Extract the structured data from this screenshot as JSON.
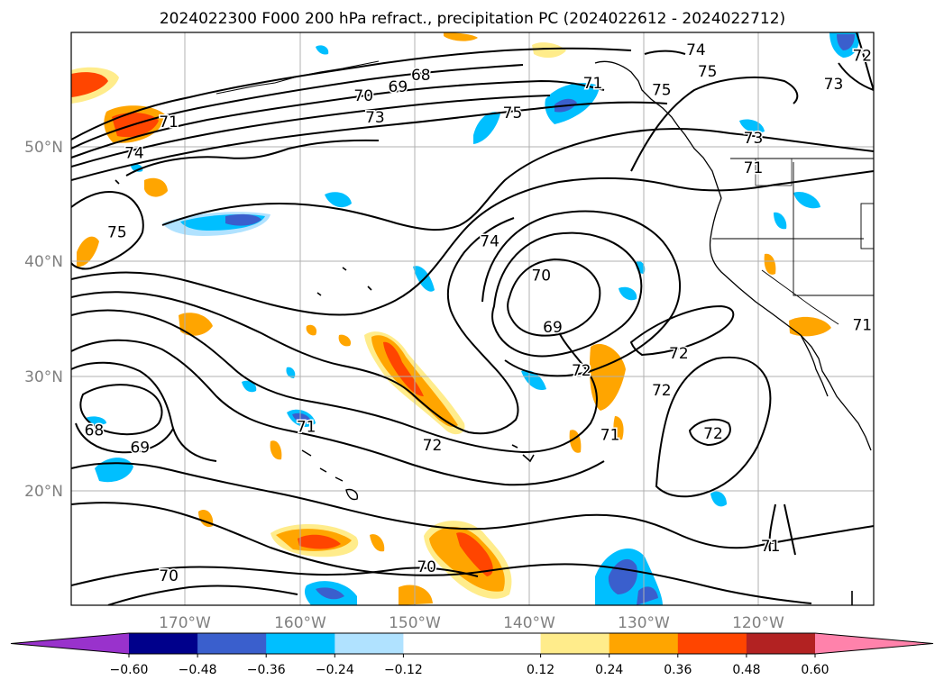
{
  "title": "2024022300 F000 200 hPa refract., precipitation PC (2024022612 - 2024022712)",
  "chart_data": {
    "type": "heatmap",
    "title": "2024022300 F000 200 hPa refract., precipitation PC (2024022612 - 2024022712)",
    "lon_range": [
      -180,
      -110
    ],
    "lat_range": [
      10,
      60
    ],
    "lon_ticks": [
      {
        "value": -170,
        "label": "170°W"
      },
      {
        "value": -160,
        "label": "160°W"
      },
      {
        "value": -150,
        "label": "150°W"
      },
      {
        "value": -140,
        "label": "140°W"
      },
      {
        "value": -130,
        "label": "130°W"
      },
      {
        "value": -120,
        "label": "120°W"
      }
    ],
    "lat_ticks": [
      {
        "value": 20,
        "label": "20°N"
      },
      {
        "value": 30,
        "label": "30°N"
      },
      {
        "value": 40,
        "label": "40°N"
      },
      {
        "value": 50,
        "label": "50°N"
      }
    ],
    "grid": true,
    "colorbar": {
      "orientation": "horizontal",
      "placement": "bottom",
      "extend": "both",
      "bounds": [
        -0.6,
        -0.48,
        -0.36,
        -0.24,
        -0.12,
        0.12,
        0.24,
        0.36,
        0.48,
        0.6
      ],
      "tick_labels": [
        "−0.60",
        "−0.48",
        "−0.36",
        "−0.24",
        "−0.12",
        "0.12",
        "0.24",
        "0.36",
        "0.48",
        "0.60"
      ],
      "colors": [
        "#9932cc",
        "#00008b",
        "#3a5fcd",
        "#00bfff",
        "#b0e2ff",
        "#ffffff",
        "#ffec8b",
        "#ffa500",
        "#ff4500",
        "#b22222",
        "#ff82ab"
      ]
    },
    "contour_labels": [
      {
        "lon": -149.5,
        "lat": 56.3,
        "text": "68"
      },
      {
        "lon": -151.5,
        "lat": 55.3,
        "text": "69"
      },
      {
        "lon": -154.5,
        "lat": 54.5,
        "text": "70"
      },
      {
        "lon": -153.5,
        "lat": 52.6,
        "text": "73"
      },
      {
        "lon": -171.5,
        "lat": 52.2,
        "text": "71"
      },
      {
        "lon": -141.5,
        "lat": 53.0,
        "text": "75"
      },
      {
        "lon": -134.5,
        "lat": 55.6,
        "text": "71"
      },
      {
        "lon": -128.5,
        "lat": 55.0,
        "text": "75"
      },
      {
        "lon": -125.5,
        "lat": 58.5,
        "text": "74"
      },
      {
        "lon": -124.5,
        "lat": 56.6,
        "text": "75"
      },
      {
        "lon": -120.5,
        "lat": 50.8,
        "text": "73"
      },
      {
        "lon": -120.5,
        "lat": 48.2,
        "text": "71"
      },
      {
        "lon": -113.5,
        "lat": 55.5,
        "text": "73"
      },
      {
        "lon": -111.0,
        "lat": 58.0,
        "text": "72"
      },
      {
        "lon": -174.5,
        "lat": 49.5,
        "text": "74"
      },
      {
        "lon": -176.0,
        "lat": 42.6,
        "text": "75"
      },
      {
        "lon": -143.5,
        "lat": 41.8,
        "text": "74"
      },
      {
        "lon": -139.0,
        "lat": 38.8,
        "text": "70"
      },
      {
        "lon": -138.0,
        "lat": 34.3,
        "text": "69"
      },
      {
        "lon": -135.5,
        "lat": 30.5,
        "text": "72"
      },
      {
        "lon": -133.0,
        "lat": 24.9,
        "text": "71"
      },
      {
        "lon": -127.0,
        "lat": 32.0,
        "text": "72"
      },
      {
        "lon": -128.5,
        "lat": 28.8,
        "text": "72"
      },
      {
        "lon": -124.0,
        "lat": 25.0,
        "text": "72"
      },
      {
        "lon": -111.0,
        "lat": 34.5,
        "text": "71"
      },
      {
        "lon": -178.0,
        "lat": 25.3,
        "text": "68"
      },
      {
        "lon": -174.0,
        "lat": 23.8,
        "text": "69"
      },
      {
        "lon": -159.5,
        "lat": 25.6,
        "text": "71"
      },
      {
        "lon": -148.5,
        "lat": 24.0,
        "text": "72"
      },
      {
        "lon": -171.5,
        "lat": 12.6,
        "text": "70"
      },
      {
        "lon": -149.0,
        "lat": 13.4,
        "text": "70"
      },
      {
        "lon": -119.0,
        "lat": 15.2,
        "text": "71"
      }
    ]
  }
}
